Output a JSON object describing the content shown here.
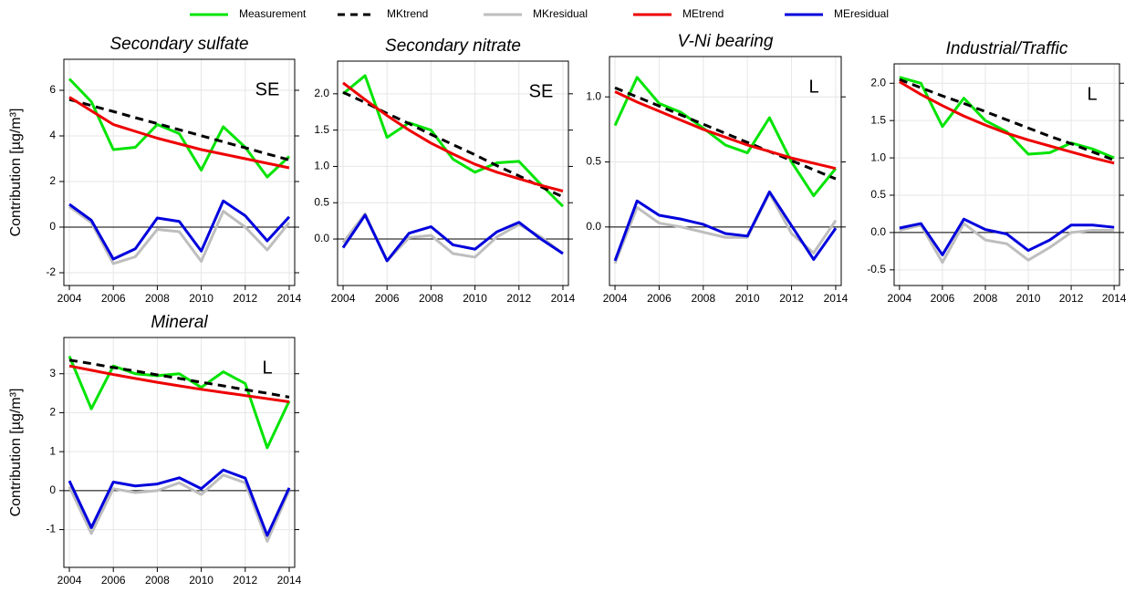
{
  "chart_data": [
    {
      "type": "line",
      "title": "Secondary sulfate",
      "annotation": "SE",
      "ylabel": "Contribution [µg/m³]",
      "legend": "top",
      "grid": true,
      "hline": 0,
      "x": [
        2004,
        2005,
        2006,
        2007,
        2008,
        2009,
        2010,
        2011,
        2012,
        2013,
        2014
      ],
      "xlim": [
        2003.75,
        2014.25
      ],
      "xticks": [
        2004,
        2006,
        2008,
        2010,
        2012,
        2014
      ],
      "ylim": [
        -2.56,
        7.36
      ],
      "yticks": [
        -2,
        0,
        2,
        4,
        6
      ],
      "series": [
        {
          "name": "Measurement",
          "color": "#00e400",
          "values": [
            6.5,
            5.5,
            3.4,
            3.5,
            4.5,
            4.1,
            2.5,
            4.4,
            3.5,
            2.2,
            3.1
          ]
        },
        {
          "name": "MKtrend",
          "color": "#000000",
          "dashed": true,
          "values": [
            5.6,
            5.33,
            5.07,
            4.8,
            4.54,
            4.27,
            4.01,
            3.74,
            3.48,
            3.21,
            2.95
          ]
        },
        {
          "name": "MKresidual",
          "color": "#bebebe",
          "values": [
            0.9,
            0.2,
            -1.6,
            -1.3,
            -0.1,
            -0.2,
            -1.5,
            0.7,
            0.0,
            -1.0,
            0.2
          ]
        },
        {
          "name": "MEtrend",
          "color": "#ee0000",
          "values": [
            5.7,
            5.1,
            4.5,
            4.2,
            3.9,
            3.65,
            3.4,
            3.2,
            3.0,
            2.8,
            2.6
          ]
        },
        {
          "name": "MEresidual",
          "color": "#0000dd",
          "values": [
            1.0,
            0.3,
            -1.4,
            -0.95,
            0.4,
            0.25,
            -1.05,
            1.15,
            0.5,
            -0.6,
            0.45
          ]
        }
      ]
    },
    {
      "type": "line",
      "title": "Secondary nitrate",
      "annotation": "SE",
      "grid": true,
      "hline": 0,
      "x": [
        2004,
        2005,
        2006,
        2007,
        2008,
        2009,
        2010,
        2011,
        2012,
        2013,
        2014
      ],
      "xlim": [
        2003.75,
        2014.25
      ],
      "xticks": [
        2004,
        2006,
        2008,
        2010,
        2012,
        2014
      ],
      "ylim": [
        -0.64,
        2.45
      ],
      "yticks": [
        {
          "value": 0,
          "label": "0.0"
        },
        0.5,
        {
          "value": 1,
          "label": "1.0"
        },
        1.5,
        {
          "value": 2,
          "label": "2.0"
        }
      ],
      "series": [
        {
          "name": "Measurement",
          "color": "#00e400",
          "values": [
            2.0,
            2.25,
            1.4,
            1.6,
            1.5,
            1.1,
            0.92,
            1.05,
            1.07,
            0.75,
            0.45
          ]
        },
        {
          "name": "MKtrend",
          "color": "#000000",
          "dashed": true,
          "values": [
            2.02,
            1.88,
            1.73,
            1.59,
            1.44,
            1.3,
            1.16,
            1.01,
            0.87,
            0.72,
            0.58
          ]
        },
        {
          "name": "MKresidual",
          "color": "#bebebe",
          "values": [
            -0.05,
            0.35,
            -0.3,
            0.02,
            0.05,
            -0.2,
            -0.25,
            0.03,
            0.2,
            0.03,
            -0.2
          ]
        },
        {
          "name": "MEtrend",
          "color": "#ee0000",
          "values": [
            2.15,
            1.92,
            1.7,
            1.5,
            1.32,
            1.17,
            1.03,
            0.92,
            0.83,
            0.74,
            0.66
          ]
        },
        {
          "name": "MEresidual",
          "color": "#0000dd",
          "values": [
            -0.12,
            0.33,
            -0.3,
            0.08,
            0.17,
            -0.08,
            -0.14,
            0.1,
            0.23,
            0.0,
            -0.2
          ]
        }
      ]
    },
    {
      "type": "line",
      "title": "V-Ni bearing",
      "annotation": "L",
      "grid": true,
      "hline": 0,
      "x": [
        2004,
        2005,
        2006,
        2007,
        2008,
        2009,
        2010,
        2011,
        2012,
        2013,
        2014
      ],
      "xlim": [
        2003.75,
        2014.25
      ],
      "xticks": [
        2004,
        2006,
        2008,
        2010,
        2012,
        2014
      ],
      "ylim": [
        -0.45,
        1.31
      ],
      "yticks": [
        {
          "value": 0,
          "label": "0.0"
        },
        0.5,
        {
          "value": 1,
          "label": "1.0"
        }
      ],
      "series": [
        {
          "name": "Measurement",
          "color": "#00e400",
          "values": [
            0.78,
            1.15,
            0.95,
            0.88,
            0.76,
            0.63,
            0.57,
            0.84,
            0.5,
            0.24,
            0.45
          ]
        },
        {
          "name": "MKtrend",
          "color": "#000000",
          "dashed": true,
          "values": [
            1.07,
            1.0,
            0.93,
            0.86,
            0.79,
            0.72,
            0.65,
            0.58,
            0.51,
            0.44,
            0.37
          ]
        },
        {
          "name": "MKresidual",
          "color": "#bebebe",
          "values": [
            -0.28,
            0.15,
            0.03,
            0.0,
            -0.04,
            -0.08,
            -0.08,
            0.26,
            -0.05,
            -0.2,
            0.05
          ]
        },
        {
          "name": "MEtrend",
          "color": "#ee0000",
          "values": [
            1.04,
            0.96,
            0.89,
            0.82,
            0.75,
            0.69,
            0.63,
            0.58,
            0.53,
            0.49,
            0.45
          ]
        },
        {
          "name": "MEresidual",
          "color": "#0000dd",
          "values": [
            -0.26,
            0.2,
            0.09,
            0.06,
            0.02,
            -0.05,
            -0.07,
            0.27,
            0.01,
            -0.25,
            -0.01
          ]
        }
      ]
    },
    {
      "type": "line",
      "title": "Industrial/Traffic",
      "annotation": "L",
      "grid": true,
      "hline": 0,
      "x": [
        2004,
        2005,
        2006,
        2007,
        2008,
        2009,
        2010,
        2011,
        2012,
        2013,
        2014
      ],
      "xlim": [
        2003.75,
        2014.25
      ],
      "xticks": [
        2004,
        2006,
        2008,
        2010,
        2012,
        2014
      ],
      "ylim": [
        -0.71,
        2.26
      ],
      "yticks": [
        -0.5,
        {
          "value": 0,
          "label": "0.0"
        },
        0.5,
        {
          "value": 1,
          "label": "1.0"
        },
        1.5,
        {
          "value": 2,
          "label": "2.0"
        }
      ],
      "series": [
        {
          "name": "Measurement",
          "color": "#00e400",
          "values": [
            2.08,
            2.0,
            1.42,
            1.8,
            1.5,
            1.35,
            1.05,
            1.07,
            1.2,
            1.12,
            1.0
          ]
        },
        {
          "name": "MKtrend",
          "color": "#000000",
          "dashed": true,
          "values": [
            2.05,
            1.94,
            1.83,
            1.73,
            1.62,
            1.51,
            1.4,
            1.29,
            1.19,
            1.08,
            0.97
          ]
        },
        {
          "name": "MKresidual",
          "color": "#bebebe",
          "values": [
            0.03,
            0.1,
            -0.4,
            0.12,
            -0.1,
            -0.15,
            -0.37,
            -0.2,
            0.0,
            0.03,
            0.03
          ]
        },
        {
          "name": "MEtrend",
          "color": "#ee0000",
          "values": [
            2.02,
            1.85,
            1.7,
            1.56,
            1.44,
            1.33,
            1.24,
            1.16,
            1.08,
            1.0,
            0.93
          ]
        },
        {
          "name": "MEresidual",
          "color": "#0000dd",
          "values": [
            0.06,
            0.12,
            -0.3,
            0.18,
            0.04,
            -0.02,
            -0.24,
            -0.1,
            0.1,
            0.1,
            0.07
          ]
        }
      ]
    },
    {
      "type": "line",
      "title": "Mineral",
      "annotation": "L",
      "ylabel": "Contribution [µg/m³]",
      "grid": true,
      "hline": 0,
      "x": [
        2004,
        2005,
        2006,
        2007,
        2008,
        2009,
        2010,
        2011,
        2012,
        2013,
        2014
      ],
      "xlim": [
        2003.75,
        2014.25
      ],
      "xticks": [
        2004,
        2006,
        2008,
        2010,
        2012,
        2014
      ],
      "ylim": [
        -1.97,
        3.93
      ],
      "yticks": [
        -1,
        0,
        1,
        2,
        3
      ],
      "series": [
        {
          "name": "Measurement",
          "color": "#00e400",
          "values": [
            3.45,
            2.1,
            3.2,
            3.0,
            2.95,
            3.0,
            2.65,
            3.05,
            2.75,
            1.1,
            2.3
          ]
        },
        {
          "name": "MKtrend",
          "color": "#000000",
          "dashed": true,
          "values": [
            3.35,
            3.26,
            3.16,
            3.07,
            2.97,
            2.88,
            2.78,
            2.69,
            2.59,
            2.5,
            2.4
          ]
        },
        {
          "name": "MKresidual",
          "color": "#bebebe",
          "values": [
            0.1,
            -1.1,
            0.05,
            -0.05,
            0.0,
            0.2,
            -0.1,
            0.4,
            0.2,
            -1.3,
            0.0
          ]
        },
        {
          "name": "MEtrend",
          "color": "#ee0000",
          "values": [
            3.2,
            3.09,
            2.98,
            2.88,
            2.78,
            2.69,
            2.6,
            2.52,
            2.44,
            2.36,
            2.28
          ]
        },
        {
          "name": "MEresidual",
          "color": "#0000dd",
          "values": [
            0.25,
            -0.95,
            0.22,
            0.12,
            0.17,
            0.33,
            0.05,
            0.53,
            0.32,
            -1.15,
            0.07
          ]
        }
      ]
    }
  ]
}
